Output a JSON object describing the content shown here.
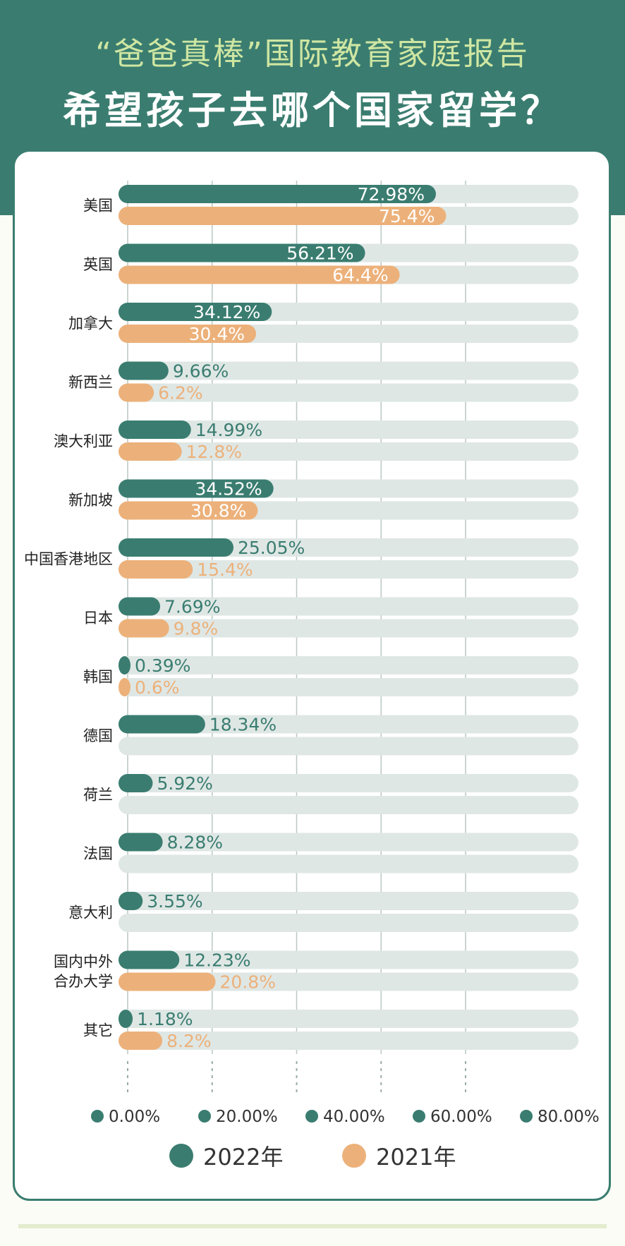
{
  "header": {
    "subtitle": "“爸爸真棒”国际教育家庭报告",
    "title": "希望孩子去哪个国家留学？"
  },
  "colors": {
    "header_bg": "#3a7d70",
    "series_2022": "#3a7d70",
    "series_2021": "#ecb17a",
    "track": "#dfe7e5"
  },
  "chart_data": {
    "type": "bar",
    "orientation": "horizontal",
    "title": "希望孩子去哪个国家留学？",
    "categories": [
      "美国",
      "英国",
      "加拿大",
      "新西兰",
      "澳大利亚",
      "新加坡",
      "中国香港地区",
      "日本",
      "韩国",
      "德国",
      "荷兰",
      "法国",
      "意大利",
      "国内中外合办大学",
      "其它"
    ],
    "category_labels": [
      [
        "美国"
      ],
      [
        "英国"
      ],
      [
        "加拿大"
      ],
      [
        "新西兰"
      ],
      [
        "澳大利亚"
      ],
      [
        "新加坡"
      ],
      [
        "中国香港地区"
      ],
      [
        "日本"
      ],
      [
        "韩国"
      ],
      [
        "德国"
      ],
      [
        "荷兰"
      ],
      [
        "法国"
      ],
      [
        "意大利"
      ],
      [
        "国内中外",
        "合办大学"
      ],
      [
        "其它"
      ]
    ],
    "series": [
      {
        "name": "2022年",
        "color": "#3a7d70",
        "values": [
          72.98,
          56.21,
          34.12,
          9.66,
          14.99,
          34.52,
          25.05,
          7.69,
          0.39,
          18.34,
          5.92,
          8.28,
          3.55,
          12.23,
          1.18
        ],
        "labels": [
          "72.98%",
          "56.21%",
          "34.12%",
          "9.66%",
          "14.99%",
          "34.52%",
          "25.05%",
          "7.69%",
          "0.39%",
          "18.34%",
          "5.92%",
          "8.28%",
          "3.55%",
          "12.23%",
          "1.18%"
        ]
      },
      {
        "name": "2021年",
        "color": "#ecb17a",
        "values": [
          75.4,
          64.4,
          30.4,
          6.2,
          12.8,
          30.8,
          15.4,
          9.8,
          0.6,
          null,
          null,
          null,
          null,
          20.8,
          8.2
        ],
        "labels": [
          "75.4%",
          "64.4%",
          "30.4%",
          "6.2%",
          "12.8%",
          "30.8%",
          "15.4%",
          "9.8%",
          "0.6%",
          "",
          "",
          "",
          "",
          "20.8%",
          "8.2%"
        ]
      }
    ],
    "xlim": [
      0,
      80
    ],
    "xticks": [
      0,
      20,
      40,
      60,
      80
    ],
    "xtick_labels": [
      "0.00%",
      "20.00%",
      "40.00%",
      "60.00%",
      "80.00%"
    ],
    "grid": true,
    "legend_position": "bottom"
  }
}
